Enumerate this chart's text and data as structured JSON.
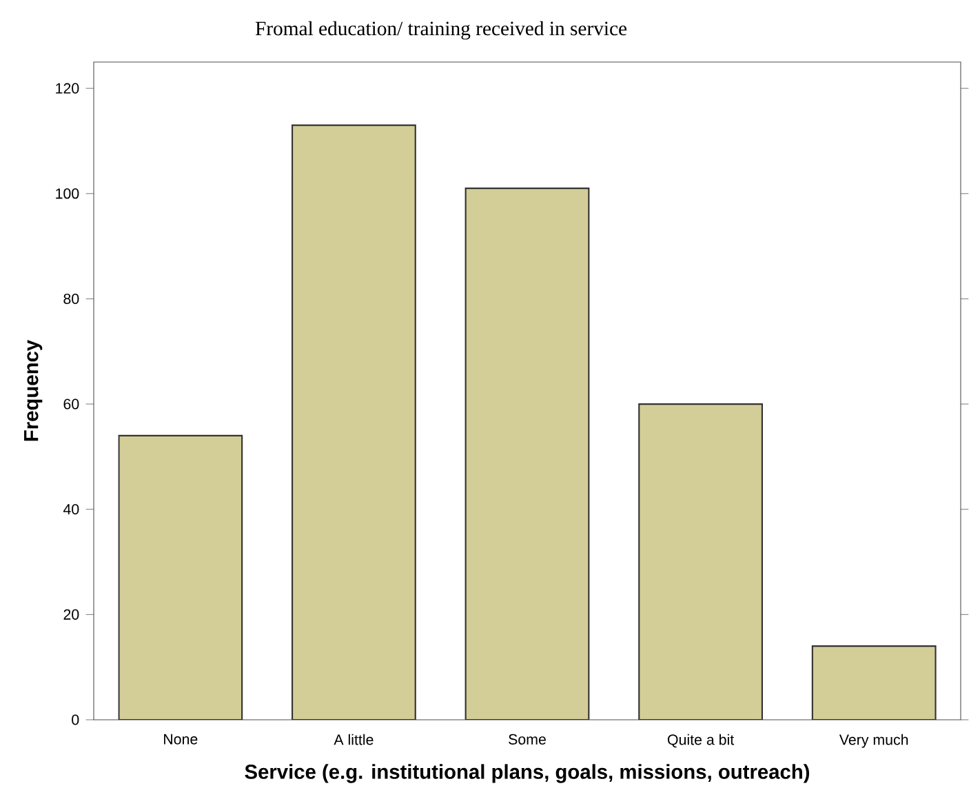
{
  "chart_data": {
    "type": "bar",
    "title": "Fromal education/ training received in service",
    "xlabel": "Service (e.g. institutional plans, goals, missions, outreach)",
    "ylabel": "Frequency",
    "categories": [
      "None",
      "A little",
      "Some",
      "Quite a bit",
      "Very much"
    ],
    "values": [
      54,
      113,
      101,
      60,
      14
    ],
    "color": "#d3cd98",
    "ylim": [
      0,
      125
    ],
    "yticks": [
      0,
      20,
      40,
      60,
      80,
      100,
      120
    ],
    "grid": false
  }
}
